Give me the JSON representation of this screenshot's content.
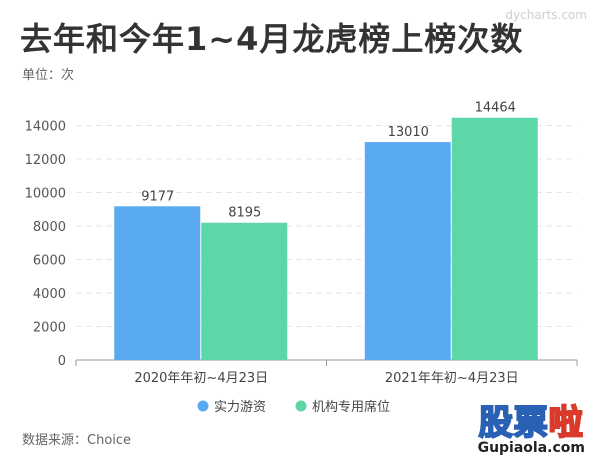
{
  "watermark": "dycharts.com",
  "title": "去年和今年1~4月龙虎榜上榜次数",
  "unit_label": "单位：次",
  "source": "数据来源：Choice",
  "logo": {
    "text_main": "股票",
    "text_accent": "啦",
    "url": "Gupiaola.com"
  },
  "colors": {
    "series1": "#5aaaf2",
    "series2": "#5dd6a8",
    "grid": "#e6e6e6",
    "axis_text": "#555555"
  },
  "chart_data": {
    "type": "bar",
    "categories": [
      "2020年年初~4月23日",
      "2021年年初~4月23日"
    ],
    "series": [
      {
        "name": "实力游资",
        "values": [
          9177,
          13010
        ]
      },
      {
        "name": "机构专用席位",
        "values": [
          8195,
          14464
        ]
      }
    ],
    "ylim": [
      0,
      16000
    ],
    "yticks": [
      0,
      2000,
      4000,
      6000,
      8000,
      10000,
      12000,
      14000
    ],
    "grid": true,
    "legend_position": "bottom"
  }
}
